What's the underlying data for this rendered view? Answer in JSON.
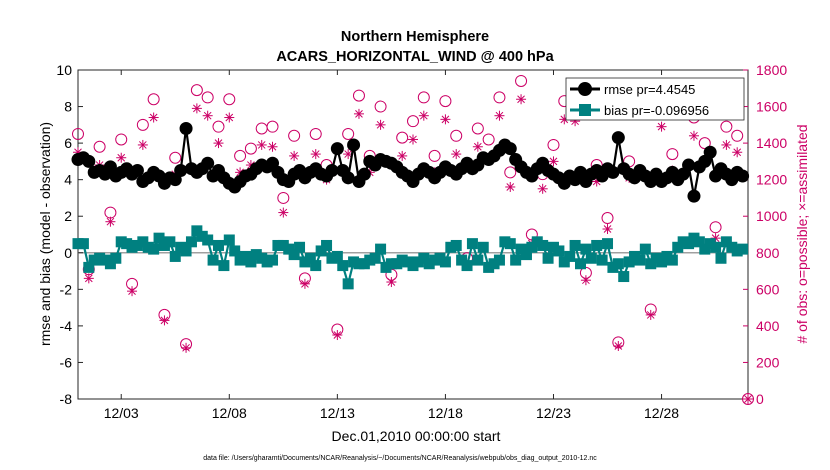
{
  "chart_data": {
    "type": "line",
    "title_line1": "Northern Hemisphere",
    "title_line2": "ACARS_HORIZONTAL_WIND @ 400 hPa",
    "xlabel": "Dec.01,2010 00:00:00 start",
    "ylabel_left": "rmse and bias (model - observation)",
    "ylabel_right": "# of obs: o=possible; ×=assimilated",
    "footnote": "data file: /Users/gharamti/Documents/NCAR/Reanalysis/~/Documents/NCAR/Reanalysis/webpub/obs_diag_output_2010-12.nc",
    "xlim": [
      1,
      32
    ],
    "ylim_left": [
      -8,
      10
    ],
    "ylim_right": [
      0,
      1800
    ],
    "xticks": [
      3,
      8,
      13,
      18,
      23,
      28
    ],
    "xtick_labels": [
      "12/03",
      "12/08",
      "12/13",
      "12/18",
      "12/23",
      "12/28"
    ],
    "yticks_left": [
      -8,
      -6,
      -4,
      -2,
      0,
      2,
      4,
      6,
      8,
      10
    ],
    "yticks_right": [
      0,
      200,
      400,
      600,
      800,
      1000,
      1200,
      1400,
      1600,
      1800
    ],
    "legend": {
      "position": "top-right",
      "entries": [
        "rmse pr=4.4545",
        "bias pr=-0.096956"
      ]
    },
    "colors": {
      "rmse": "#000000",
      "bias": "#008080",
      "obs": "#cc0066",
      "zero_line": "#a0a0a0"
    },
    "series": [
      {
        "name": "rmse",
        "x": [
          1.0,
          1.25,
          1.5,
          1.75,
          2.0,
          2.25,
          2.5,
          2.75,
          3.0,
          3.25,
          3.5,
          3.75,
          4.0,
          4.25,
          4.5,
          4.75,
          5.0,
          5.25,
          5.5,
          5.75,
          6.0,
          6.25,
          6.5,
          6.75,
          7.0,
          7.25,
          7.5,
          7.75,
          8.0,
          8.25,
          8.5,
          8.75,
          9.0,
          9.25,
          9.5,
          9.75,
          10.0,
          10.25,
          10.5,
          10.75,
          11.0,
          11.25,
          11.5,
          11.75,
          12.0,
          12.25,
          12.5,
          12.75,
          13.0,
          13.25,
          13.5,
          13.75,
          14.0,
          14.25,
          14.5,
          14.75,
          15.0,
          15.25,
          15.5,
          15.75,
          16.0,
          16.25,
          16.5,
          16.75,
          17.0,
          17.25,
          17.5,
          17.75,
          18.0,
          18.25,
          18.5,
          18.75,
          19.0,
          19.25,
          19.5,
          19.75,
          20.0,
          20.25,
          20.5,
          20.75,
          21.0,
          21.25,
          21.5,
          21.75,
          22.0,
          22.25,
          22.5,
          22.75,
          23.0,
          23.25,
          23.5,
          23.75,
          24.0,
          24.25,
          24.5,
          24.75,
          25.0,
          25.25,
          25.5,
          25.75,
          26.0,
          26.25,
          26.5,
          26.75,
          27.0,
          27.25,
          27.5,
          27.75,
          28.0,
          28.25,
          28.5,
          28.75,
          29.0,
          29.25,
          29.5,
          29.75,
          30.0,
          30.25,
          30.5,
          30.75,
          31.0,
          31.25,
          31.5,
          31.75
        ],
        "values": [
          5.1,
          5.2,
          5.0,
          4.4,
          4.5,
          4.3,
          4.7,
          4.2,
          4.4,
          4.6,
          4.3,
          4.5,
          3.9,
          4.1,
          4.4,
          4.2,
          3.8,
          4.1,
          4.0,
          4.5,
          6.8,
          4.6,
          4.4,
          4.6,
          4.9,
          4.2,
          4.5,
          4.1,
          3.8,
          3.6,
          3.9,
          4.2,
          4.3,
          4.6,
          4.8,
          4.7,
          4.9,
          4.4,
          4.0,
          3.9,
          4.3,
          4.5,
          4.1,
          4.4,
          4.6,
          4.3,
          4.2,
          4.5,
          5.7,
          4.5,
          4.1,
          5.9,
          3.9,
          4.3,
          5.0,
          4.8,
          5.1,
          5.0,
          4.9,
          4.7,
          4.4,
          4.2,
          3.9,
          4.3,
          4.6,
          4.4,
          4.1,
          4.4,
          4.7,
          4.5,
          4.3,
          4.6,
          4.9,
          4.6,
          4.8,
          5.2,
          5.1,
          5.3,
          5.6,
          5.9,
          5.7,
          5.1,
          4.7,
          4.4,
          4.2,
          4.6,
          4.9,
          4.5,
          4.3,
          4.1,
          3.8,
          4.2,
          4.0,
          4.4,
          3.9,
          4.3,
          4.5,
          4.2,
          4.6,
          4.4,
          6.3,
          4.6,
          4.3,
          4.1,
          4.5,
          4.2,
          3.9,
          4.3,
          3.9,
          4.1,
          4.4,
          4.0,
          4.3,
          4.8,
          3.1,
          4.7,
          5.0,
          5.5,
          4.2,
          4.6,
          4.3,
          4.0,
          4.4,
          4.2
        ]
      },
      {
        "name": "bias",
        "x": [
          1.0,
          1.25,
          1.5,
          1.75,
          2.0,
          2.25,
          2.5,
          2.75,
          3.0,
          3.25,
          3.5,
          3.75,
          4.0,
          4.25,
          4.5,
          4.75,
          5.0,
          5.25,
          5.5,
          5.75,
          6.0,
          6.25,
          6.5,
          6.75,
          7.0,
          7.25,
          7.5,
          7.75,
          8.0,
          8.25,
          8.5,
          8.75,
          9.0,
          9.25,
          9.5,
          9.75,
          10.0,
          10.25,
          10.5,
          10.75,
          11.0,
          11.25,
          11.5,
          11.75,
          12.0,
          12.25,
          12.5,
          12.75,
          13.0,
          13.25,
          13.5,
          13.75,
          14.0,
          14.25,
          14.5,
          14.75,
          15.0,
          15.25,
          15.5,
          15.75,
          16.0,
          16.25,
          16.5,
          16.75,
          17.0,
          17.25,
          17.5,
          17.75,
          18.0,
          18.25,
          18.5,
          18.75,
          19.0,
          19.25,
          19.5,
          19.75,
          20.0,
          20.25,
          20.5,
          20.75,
          21.0,
          21.25,
          21.5,
          21.75,
          22.0,
          22.25,
          22.5,
          22.75,
          23.0,
          23.25,
          23.5,
          23.75,
          24.0,
          24.25,
          24.5,
          24.75,
          25.0,
          25.25,
          25.5,
          25.75,
          26.0,
          26.25,
          26.5,
          26.75,
          27.0,
          27.25,
          27.5,
          27.75,
          28.0,
          28.25,
          28.5,
          28.75,
          29.0,
          29.25,
          29.5,
          29.75,
          30.0,
          30.25,
          30.5,
          30.75,
          31.0,
          31.25,
          31.5,
          31.75
        ],
        "values": [
          0.5,
          0.5,
          -0.8,
          -0.4,
          -0.3,
          -0.4,
          -0.6,
          -0.3,
          0.6,
          0.5,
          0.3,
          0.4,
          0.6,
          0.3,
          0.2,
          0.8,
          0.4,
          0.6,
          -0.2,
          0.3,
          0.1,
          0.6,
          1.2,
          0.9,
          0.7,
          -0.4,
          0.4,
          -0.7,
          0.7,
          0.1,
          -0.4,
          -0.2,
          -0.5,
          -0.1,
          -0.3,
          -0.5,
          -0.4,
          0.4,
          0.4,
          0.2,
          -0.1,
          0.3,
          -0.5,
          -0.3,
          -0.7,
          0.1,
          0.4,
          -0.3,
          -0.2,
          -0.7,
          -1.7,
          -0.5,
          -0.6,
          -0.6,
          -0.4,
          -0.3,
          0.2,
          -0.8,
          -0.6,
          -0.6,
          -0.4,
          -0.5,
          -0.7,
          -0.5,
          -0.3,
          -0.6,
          -0.4,
          -0.3,
          -0.5,
          0.3,
          0.4,
          -0.4,
          -0.7,
          0.5,
          -0.4,
          0.3,
          -0.8,
          -0.6,
          -0.4,
          0.6,
          0.5,
          -0.4,
          0.2,
          -0.1,
          0.3,
          0.6,
          0.4,
          -0.3,
          0.3,
          0.1,
          -0.5,
          -0.2,
          0.4,
          -0.6,
          0.2,
          -0.3,
          0.4,
          -0.4,
          0.5,
          -0.8,
          -0.6,
          -1.3,
          -0.5,
          -0.2,
          -0.4,
          0.2,
          -0.6,
          -0.3,
          -0.5,
          -0.2,
          -0.4,
          0.3,
          0.6,
          0.5,
          0.8,
          0.6,
          0.2,
          0.5,
          0.3,
          -0.3,
          0.6,
          0.3,
          0.1,
          0.2
        ]
      },
      {
        "name": "possible",
        "marker": "circle",
        "x": [
          1.0,
          1.5,
          2.0,
          2.5,
          3.0,
          3.5,
          4.0,
          4.5,
          5.0,
          5.5,
          6.0,
          6.5,
          7.0,
          7.5,
          8.0,
          8.5,
          9.0,
          9.5,
          10.0,
          10.5,
          11.0,
          11.5,
          12.0,
          12.5,
          13.0,
          13.5,
          14.0,
          14.5,
          15.0,
          15.5,
          16.0,
          16.5,
          17.0,
          17.5,
          18.0,
          18.5,
          19.0,
          19.5,
          20.0,
          20.5,
          21.0,
          21.5,
          22.0,
          22.5,
          23.0,
          23.5,
          24.0,
          24.5,
          25.0,
          25.5,
          26.0,
          26.5,
          27.0,
          27.5,
          28.0,
          28.5,
          29.0,
          29.5,
          30.0,
          30.5,
          31.0,
          31.5
        ],
        "values": [
          1450,
          710,
          1380,
          1020,
          1420,
          630,
          1500,
          1640,
          460,
          1320,
          300,
          1690,
          1650,
          1490,
          1640,
          1330,
          1370,
          1480,
          1490,
          1100,
          1440,
          660,
          1450,
          1280,
          380,
          1450,
          1660,
          1330,
          1600,
          680,
          1430,
          1520,
          1650,
          1330,
          1630,
          1440,
          770,
          1480,
          1420,
          1650,
          1240,
          1740,
          900,
          1230,
          1390,
          1630,
          1620,
          690,
          1280,
          990,
          310,
          1300,
          1680,
          490,
          1590,
          1340,
          1660,
          1540,
          1400,
          940,
          1490,
          1440
        ]
      },
      {
        "name": "assimilated",
        "marker": "asterisk",
        "x": [
          1.0,
          1.5,
          2.0,
          2.5,
          3.0,
          3.5,
          4.0,
          4.5,
          5.0,
          5.5,
          6.0,
          6.5,
          7.0,
          7.5,
          8.0,
          8.5,
          9.0,
          9.5,
          10.0,
          10.5,
          11.0,
          11.5,
          12.0,
          12.5,
          13.0,
          13.5,
          14.0,
          14.5,
          15.0,
          15.5,
          16.0,
          16.5,
          17.0,
          17.5,
          18.0,
          18.5,
          19.0,
          19.5,
          20.0,
          20.5,
          21.0,
          21.5,
          22.0,
          22.5,
          23.0,
          23.5,
          24.0,
          24.5,
          25.0,
          25.5,
          26.0,
          26.5,
          27.0,
          27.5,
          28.0,
          28.5,
          29.0,
          29.5,
          30.0,
          30.5,
          31.0,
          31.5
        ],
        "values": [
          1350,
          660,
          1280,
          970,
          1320,
          590,
          1390,
          1540,
          430,
          1230,
          280,
          1590,
          1550,
          1400,
          1540,
          1240,
          1280,
          1390,
          1380,
          1020,
          1330,
          630,
          1340,
          1200,
          350,
          1340,
          1560,
          1240,
          1500,
          640,
          1330,
          1420,
          1550,
          1240,
          1530,
          1340,
          730,
          1380,
          1320,
          1550,
          1160,
          1640,
          850,
          1150,
          1300,
          1530,
          1520,
          650,
          1190,
          930,
          290,
          1210,
          1580,
          460,
          1490,
          1250,
          1560,
          1440,
          1300,
          880,
          1390,
          1350
        ]
      }
    ]
  }
}
